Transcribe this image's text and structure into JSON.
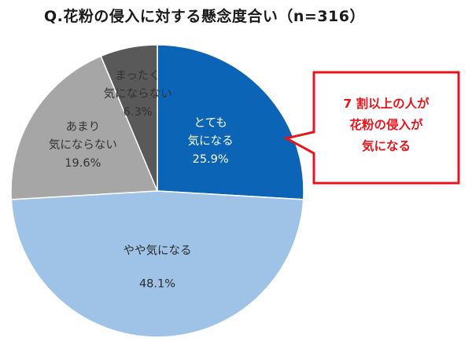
{
  "chart_data": {
    "type": "pie",
    "title": "Q.花粉の侵入に対する懸念度合い（n=316）",
    "slices": [
      {
        "label_lines": [
          "とても",
          "気になる"
        ],
        "value": 25.9,
        "value_label": "25.9%",
        "color": "#0b64b5",
        "text_color": "#ffffff"
      },
      {
        "label_lines": [
          "やや気になる"
        ],
        "value": 48.1,
        "value_label": "48.1%",
        "color": "#9fc3e6",
        "text_color": "#2b2b2b"
      },
      {
        "label_lines": [
          "あまり",
          "気にならない"
        ],
        "value": 19.6,
        "value_label": "19.6%",
        "color": "#a6a6a6",
        "text_color": "#333333"
      },
      {
        "label_lines": [
          "まったく",
          "気にならない"
        ],
        "value": 6.3,
        "value_label": "6.3%",
        "color": "#595959",
        "text_color": "#333333"
      }
    ],
    "start": "12 o'clock",
    "direction": "clockwise"
  },
  "callout": {
    "lines": [
      "7 割以上の人が",
      "花粉の侵入が",
      "気になる"
    ],
    "border_color": "#e8141b",
    "text_color": "#e8141b"
  }
}
